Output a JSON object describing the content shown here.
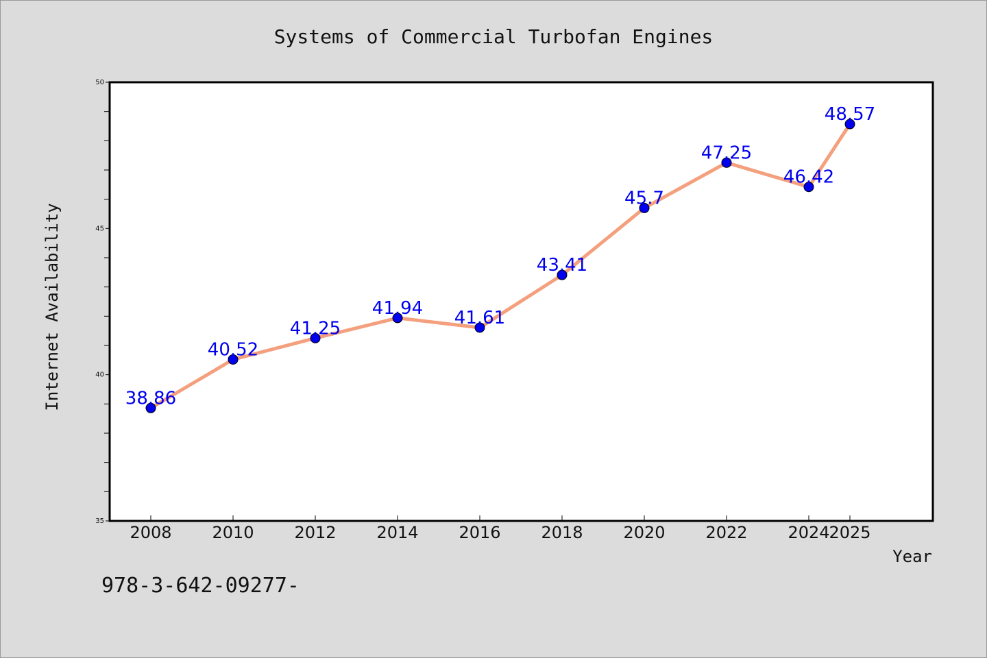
{
  "chart_data": {
    "type": "line",
    "title": "Systems of Commercial Turbofan Engines",
    "xlabel": "Year",
    "ylabel": "Internet Availability",
    "categories": [
      "2008",
      "2010",
      "2012",
      "2014",
      "2016",
      "2018",
      "2020",
      "2022",
      "2024",
      "2025"
    ],
    "values": [
      38.86,
      40.52,
      41.25,
      41.94,
      41.61,
      43.41,
      45.7,
      47.25,
      46.42,
      48.57
    ],
    "data_labels": [
      "38.86",
      "40.52",
      "41.25",
      "41.94",
      "41.61",
      "43.41",
      "45.7",
      "47.25",
      "46.42",
      "48.57"
    ],
    "ylim": [
      35,
      50
    ],
    "yticks": [
      "35",
      "40",
      "45",
      "50"
    ],
    "grid": false,
    "colors": {
      "line": "#f4a07e",
      "marker": "#0000ee",
      "data_label": "#0000ee",
      "plot_background": "#ffffff",
      "page_background": "#dcdcdc"
    }
  },
  "footer_text": "978-3-642-09277-"
}
